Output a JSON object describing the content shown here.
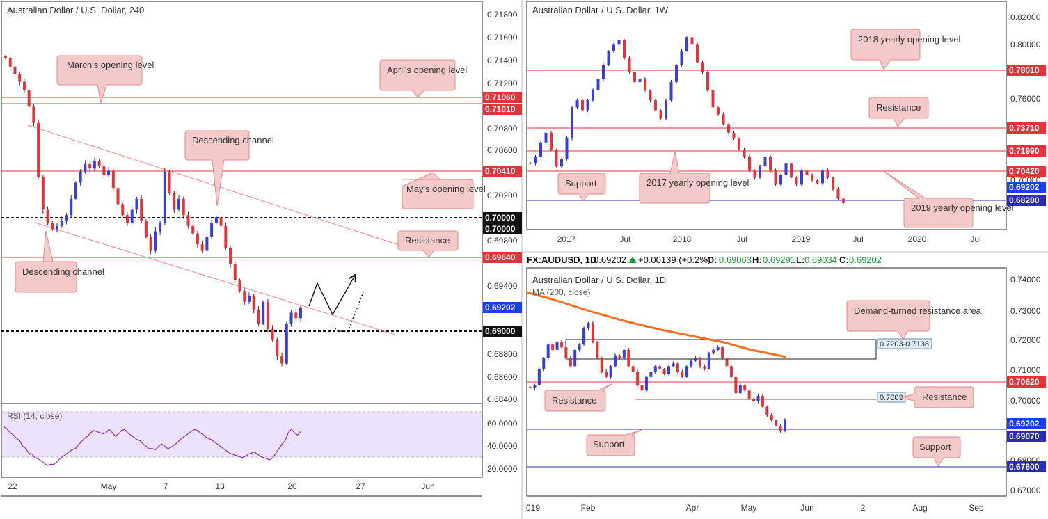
{
  "colors": {
    "up": "#3a3fd6",
    "down": "#e0353a",
    "level": "#e0353a",
    "support_line": "#2b2bb8",
    "callout_fill": "#f4c9c9",
    "callout_stroke": "#e08b8b",
    "channel": "#f08a8a",
    "rsi_band": "#ece2fb",
    "rsi_line": "#8a2ea6",
    "ma": "#f37021",
    "price_tag_blue": "#1a3ff0"
  },
  "panels": {
    "p240": {
      "title": "Australian Dollar / U.S. Dollar, 240",
      "yticks": [
        "0.71800",
        "0.71600",
        "0.71400",
        "0.71200",
        "0.70800",
        "0.70600",
        "0.70200",
        "0.69800",
        "0.69400",
        "0.68800",
        "0.68600",
        "0.68400"
      ],
      "xticks": [
        "22",
        "May",
        "7",
        "13",
        "20",
        "27",
        "Jun"
      ],
      "tags": [
        "0.71060",
        "0.71010",
        "0.70410",
        "0.70000",
        "0.70000",
        "0.69640",
        "0.69202",
        "0.69000"
      ],
      "callouts": {
        "march": "March's opening level",
        "april": "April's opening level",
        "desc_top": "Descending channel",
        "may": "May's opening level",
        "resistance": "Resistance",
        "desc_bottom": "Descending channel"
      },
      "rsi": {
        "label": "RSI (14, close)",
        "yticks": [
          "60.0000",
          "40.0000",
          "20.0000"
        ],
        "values": [
          57,
          55,
          52,
          50,
          47,
          45,
          40,
          38,
          34,
          33,
          30,
          29,
          27,
          25,
          23,
          24,
          24,
          26,
          29,
          31,
          33,
          35,
          37,
          38,
          41,
          44,
          47,
          49,
          52,
          54,
          53,
          52,
          51,
          52,
          55,
          52,
          49,
          51,
          54,
          55,
          52,
          50,
          48,
          46,
          45,
          42,
          40,
          38,
          38,
          37,
          40,
          42,
          40,
          38,
          39,
          41,
          43,
          46,
          48,
          50,
          52,
          54,
          55,
          53,
          51,
          49,
          47,
          46,
          44,
          42,
          40,
          38,
          36,
          34,
          33,
          32,
          31,
          30,
          31,
          33,
          34,
          35,
          33,
          31,
          30,
          29,
          28,
          30,
          34,
          38,
          42,
          45,
          52,
          55,
          52,
          50,
          53
        ]
      }
    },
    "pW": {
      "title": "Australian Dollar / U.S. Dollar, 1W",
      "yticks": [
        "0.82000",
        "0.80000",
        "0.76000",
        "0.74000",
        "0.70000"
      ],
      "xticks": [
        "2017",
        "Jul",
        "2018",
        "Jul",
        "2019",
        "Jul",
        "2020",
        "Jul"
      ],
      "tags": [
        "0.78010",
        "0.73710",
        "0.71990",
        "0.70420",
        "0.69202",
        "0.68280"
      ],
      "callouts": {
        "yearly2018": "2018 yearly opening level",
        "resistance": "Resistance",
        "support": "Support",
        "yearly2017": "2017 yearly opening level",
        "yearly2019": "2019 yearly opening level"
      }
    },
    "pD": {
      "title": "Australian Dollar / U.S. Dollar, 1D",
      "ma_label": "MA (200, close)",
      "header": {
        "symbol": "FX:AUDUSD, 1D",
        "last": "0.69202",
        "change": "+0.00139 (+0.2%)",
        "o_label": "O:",
        "o": "0.69063",
        "h_label": "H:",
        "h": "0.69291",
        "l_label": "L:",
        "l": "0.69034",
        "c_label": "C:",
        "c": "0.69202"
      },
      "yticks": [
        "0.74000",
        "0.73000",
        "0.72000",
        "0.71000",
        "0.70000",
        "0.68000",
        "0.67000"
      ],
      "xticks": [
        "019",
        "Feb",
        "Apr",
        "May",
        "Jun",
        "2",
        "Aug",
        "Sep"
      ],
      "tags": [
        "0.70620",
        "0.69202",
        "0.69070",
        "0.67800"
      ],
      "zone_label": "0.7203-0.7138",
      "level_label": "0.7003",
      "callouts": {
        "demand": "Demand-turned resistance area",
        "resistance_right": "Resistance",
        "resistance_left": "Resistance",
        "support_left": "Support",
        "support_right": "Support"
      }
    }
  },
  "chart_data": [
    {
      "type": "candlestick",
      "title": "Australian Dollar / U.S. Dollar, 240",
      "ylim": [
        0.6835,
        0.719
      ],
      "levels": [
        0.7106,
        0.7101,
        0.7041,
        0.7,
        0.6964,
        0.69
      ],
      "last": 0.69202,
      "close_path": [
        0.715,
        0.7142,
        0.7135,
        0.7128,
        0.712,
        0.7105,
        0.709,
        0.704,
        0.701,
        0.6998,
        0.6992,
        0.6995,
        0.7,
        0.7005,
        0.702,
        0.7035,
        0.7045,
        0.7052,
        0.7048,
        0.7055,
        0.705,
        0.7042,
        0.7046,
        0.703,
        0.7015,
        0.7005,
        0.6998,
        0.701,
        0.702,
        0.7,
        0.6985,
        0.6972,
        0.699,
        0.6998,
        0.7045,
        0.7025,
        0.701,
        0.702,
        0.7005,
        0.6995,
        0.6988,
        0.6978,
        0.6972,
        0.6985,
        0.6998,
        0.7003,
        0.6995,
        0.6975,
        0.696,
        0.6945,
        0.6935,
        0.6925,
        0.693,
        0.6918,
        0.6905,
        0.6925,
        0.69,
        0.689,
        0.6875,
        0.6868,
        0.6905,
        0.6915,
        0.691,
        0.692
      ]
    },
    {
      "type": "candlestick",
      "title": "Australian Dollar / U.S. Dollar, 1W",
      "ylim": [
        0.678,
        0.824
      ],
      "levels": [
        0.7801,
        0.7371,
        0.7199,
        0.7042,
        0.6828
      ],
      "last": 0.69202,
      "close_path": [
        0.72,
        0.725,
        0.735,
        0.742,
        0.73,
        0.718,
        0.723,
        0.738,
        0.76,
        0.765,
        0.758,
        0.765,
        0.772,
        0.78,
        0.79,
        0.8,
        0.805,
        0.808,
        0.795,
        0.785,
        0.778,
        0.78,
        0.772,
        0.765,
        0.758,
        0.752,
        0.765,
        0.778,
        0.79,
        0.8,
        0.81,
        0.805,
        0.792,
        0.785,
        0.772,
        0.76,
        0.755,
        0.748,
        0.742,
        0.738,
        0.73,
        0.725,
        0.715,
        0.71,
        0.718,
        0.725,
        0.715,
        0.705,
        0.712,
        0.72,
        0.71,
        0.705,
        0.715,
        0.712,
        0.708,
        0.706,
        0.715,
        0.71,
        0.702,
        0.695,
        0.692
      ]
    },
    {
      "type": "candlestick",
      "title": "Australian Dollar / U.S. Dollar, 1D",
      "ylim": [
        0.666,
        0.744
      ],
      "levels": [
        0.7062,
        0.7003,
        0.6907,
        0.678
      ],
      "zone": [
        0.7138,
        0.7203
      ],
      "ma": "MA (200, close)",
      "last": 0.69202,
      "close_path": [
        0.704,
        0.705,
        0.711,
        0.715,
        0.72,
        0.718,
        0.721,
        0.719,
        0.715,
        0.712,
        0.718,
        0.72,
        0.726,
        0.728,
        0.721,
        0.715,
        0.71,
        0.708,
        0.712,
        0.716,
        0.715,
        0.718,
        0.712,
        0.71,
        0.705,
        0.703,
        0.708,
        0.71,
        0.712,
        0.711,
        0.709,
        0.712,
        0.713,
        0.71,
        0.708,
        0.712,
        0.714,
        0.715,
        0.712,
        0.711,
        0.717,
        0.718,
        0.719,
        0.715,
        0.712,
        0.708,
        0.702,
        0.705,
        0.703,
        0.7,
        0.699,
        0.701,
        0.697,
        0.694,
        0.692,
        0.69,
        0.688,
        0.692
      ]
    }
  ]
}
